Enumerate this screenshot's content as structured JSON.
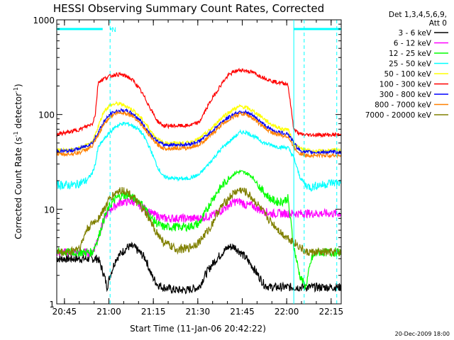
{
  "chart_data": {
    "type": "line",
    "title": "HESSI Observing Summary Count Rates, Corrected",
    "xlabel": "Start Time (11-Jan-06 20:42:22)",
    "ylabel_main": "Corrected Count Rate (s",
    "ylabel_sup1": "-1",
    "ylabel_mid": " detector",
    "ylabel_sup2": "-1",
    "ylabel_end": ")",
    "yscale": "log",
    "ylim": [
      1,
      1000
    ],
    "xlim_minutes": [
      0,
      96
    ],
    "x_ticks": [
      {
        "t": 2.6,
        "label": "20:45"
      },
      {
        "t": 17.6,
        "label": "21:00"
      },
      {
        "t": 32.6,
        "label": "21:15"
      },
      {
        "t": 47.6,
        "label": "21:30"
      },
      {
        "t": 62.6,
        "label": "21:45"
      },
      {
        "t": 77.6,
        "label": "22:00"
      },
      {
        "t": 92.6,
        "label": "22:15"
      }
    ],
    "y_ticks": [
      {
        "v": 1,
        "label": "1"
      },
      {
        "v": 10,
        "label": "10"
      },
      {
        "v": 100,
        "label": "100"
      },
      {
        "v": 1000,
        "label": "1000"
      }
    ],
    "legend_header": [
      "Det 1,3,4,5,6,9,",
      "Att 0"
    ],
    "series": [
      {
        "name": "3 - 6 keV",
        "color": "#000000",
        "x": [
          0,
          12,
          14,
          16,
          17,
          18,
          20,
          22,
          24,
          26,
          28,
          30,
          32,
          34,
          36,
          40,
          44,
          48,
          50,
          52,
          54,
          56,
          58,
          60,
          62,
          64,
          66,
          68,
          70,
          72,
          74,
          76,
          78
        ],
        "y": [
          3,
          3,
          3,
          2,
          1.5,
          2,
          3,
          3.5,
          4,
          4,
          3.5,
          3,
          2,
          1.6,
          1.5,
          1.4,
          1.4,
          1.5,
          2,
          2.5,
          3,
          3.5,
          4,
          4,
          3.5,
          3,
          2.5,
          2,
          1.6,
          1.5,
          1.5,
          1.5,
          1.5
        ]
      },
      {
        "name": "6 - 12 keV",
        "color": "#ff00ff",
        "x": [
          0,
          12,
          14,
          16,
          18,
          20,
          22,
          24,
          26,
          28,
          30,
          32,
          34,
          36,
          40,
          44,
          48,
          52,
          54,
          56,
          58,
          60,
          62,
          64,
          66,
          68,
          70,
          72,
          74,
          76,
          78,
          80,
          82
        ],
        "y": [
          3.5,
          3.5,
          5,
          8,
          10,
          11,
          12,
          12,
          12,
          11,
          10,
          9,
          8.5,
          8,
          8,
          8,
          8,
          8.5,
          9,
          10,
          11,
          12,
          12,
          11,
          11,
          10,
          9.5,
          9,
          9,
          9,
          9,
          9,
          9
        ]
      },
      {
        "name": "12 - 25 keV",
        "color": "#00ff00",
        "x": [
          0,
          12,
          14,
          16,
          18,
          20,
          22,
          24,
          26,
          28,
          30,
          32,
          34,
          36,
          40,
          44,
          48,
          50,
          52,
          54,
          56,
          58,
          60,
          62,
          64,
          66,
          68,
          70,
          72,
          74,
          76,
          78,
          80,
          82,
          84,
          86,
          88,
          90,
          92,
          94,
          96
        ],
        "y": [
          3.5,
          3.5,
          5,
          8,
          11,
          13,
          14,
          14,
          13,
          12,
          10,
          8,
          7,
          6.5,
          6.5,
          6.5,
          7,
          9,
          12,
          15,
          18,
          21,
          24,
          25,
          24,
          22,
          18,
          15,
          13,
          12,
          12,
          13,
          4,
          2,
          1.5,
          3,
          3.5,
          3.5,
          3.5,
          3.5,
          3.5
        ]
      },
      {
        "name": "25 - 50 keV",
        "color": "#00ffff",
        "x": [
          0,
          2,
          6,
          10,
          12,
          13,
          14,
          16,
          18,
          20,
          22,
          24,
          26,
          28,
          30,
          32,
          34,
          36,
          40,
          44,
          48,
          52,
          56,
          60,
          62,
          64,
          66,
          68,
          70,
          72,
          74,
          76,
          78,
          80,
          82,
          84,
          86,
          88,
          90,
          92,
          94,
          96
        ],
        "y": [
          18,
          18,
          18,
          20,
          24,
          30,
          45,
          55,
          65,
          75,
          80,
          80,
          75,
          68,
          55,
          40,
          28,
          22,
          21,
          21,
          23,
          32,
          45,
          58,
          65,
          65,
          60,
          55,
          50,
          48,
          46,
          45,
          45,
          35,
          22,
          18,
          17,
          18,
          18,
          19,
          19,
          19
        ]
      },
      {
        "name": "50 - 100 keV",
        "color": "#ffff00",
        "x": [
          0,
          4,
          8,
          12,
          14,
          16,
          18,
          20,
          22,
          24,
          26,
          28,
          30,
          32,
          34,
          36,
          40,
          44,
          48,
          52,
          56,
          60,
          62,
          64,
          66,
          68,
          70,
          72,
          74,
          76,
          78,
          80,
          82,
          84,
          86,
          88,
          90,
          92,
          94,
          96
        ],
        "y": [
          42,
          42,
          44,
          50,
          75,
          110,
          125,
          130,
          128,
          120,
          110,
          95,
          80,
          65,
          55,
          50,
          50,
          50,
          55,
          70,
          95,
          115,
          122,
          118,
          110,
          100,
          90,
          80,
          75,
          70,
          70,
          50,
          44,
          42,
          41,
          41,
          41,
          42,
          42,
          42
        ]
      },
      {
        "name": "100 - 300 keV",
        "color": "#ff0000",
        "x": [
          0,
          4,
          8,
          12,
          13,
          14,
          16,
          18,
          20,
          22,
          24,
          26,
          28,
          30,
          32,
          34,
          36,
          40,
          44,
          48,
          52,
          56,
          58,
          60,
          62,
          64,
          66,
          68,
          70,
          72,
          74,
          76,
          78,
          80,
          82,
          84,
          86,
          88,
          90,
          92,
          94,
          96
        ],
        "y": [
          62,
          65,
          70,
          80,
          100,
          220,
          240,
          255,
          265,
          262,
          250,
          225,
          185,
          145,
          110,
          85,
          76,
          76,
          76,
          82,
          140,
          220,
          260,
          285,
          295,
          290,
          280,
          260,
          245,
          230,
          220,
          215,
          210,
          70,
          62,
          61,
          61,
          61,
          61,
          61,
          61,
          61
        ]
      },
      {
        "name": "300 - 800 keV",
        "color": "#0000ff",
        "x": [
          0,
          4,
          8,
          12,
          14,
          16,
          18,
          20,
          22,
          24,
          26,
          28,
          30,
          32,
          34,
          36,
          40,
          44,
          48,
          52,
          56,
          60,
          62,
          64,
          66,
          68,
          70,
          72,
          74,
          76,
          78,
          80,
          82,
          84,
          86,
          88,
          90,
          92,
          94,
          96
        ],
        "y": [
          41,
          41,
          44,
          50,
          65,
          85,
          100,
          108,
          110,
          108,
          100,
          88,
          72,
          60,
          52,
          48,
          48,
          48,
          52,
          65,
          85,
          102,
          108,
          105,
          98,
          88,
          78,
          70,
          66,
          64,
          63,
          50,
          42,
          40,
          40,
          40,
          40,
          40,
          40,
          40
        ]
      },
      {
        "name": "800 - 7000 keV",
        "color": "#ff8000",
        "x": [
          0,
          4,
          8,
          12,
          14,
          16,
          18,
          20,
          22,
          24,
          26,
          28,
          30,
          32,
          34,
          36,
          40,
          44,
          48,
          52,
          56,
          60,
          62,
          64,
          66,
          68,
          70,
          72,
          74,
          76,
          78,
          80,
          82,
          84,
          86,
          88,
          90,
          92,
          94,
          96
        ],
        "y": [
          38,
          38,
          40,
          46,
          60,
          80,
          95,
          103,
          105,
          102,
          95,
          82,
          68,
          56,
          48,
          44,
          44,
          44,
          48,
          60,
          80,
          96,
          102,
          100,
          92,
          82,
          73,
          66,
          62,
          60,
          59,
          45,
          39,
          37,
          37,
          37,
          37,
          37,
          37,
          37
        ]
      },
      {
        "name": "7000 - 20000 keV",
        "color": "#808000",
        "x": [
          0,
          4,
          8,
          10,
          12,
          14,
          16,
          18,
          20,
          22,
          24,
          26,
          28,
          30,
          32,
          34,
          36,
          40,
          44,
          48,
          52,
          54,
          56,
          58,
          60,
          62,
          64,
          66,
          68,
          70,
          72,
          74,
          76,
          78,
          80,
          82,
          84,
          86,
          88,
          90,
          92,
          94,
          96
        ],
        "y": [
          3.5,
          3.5,
          4,
          6,
          7,
          8,
          10,
          13,
          15,
          16,
          15,
          13,
          11,
          9,
          7,
          5.5,
          4.5,
          3.8,
          3.8,
          4.5,
          6.5,
          9,
          11,
          13,
          15,
          16,
          15,
          13,
          11,
          9,
          7.5,
          6.5,
          5.5,
          5,
          4.5,
          4,
          3.5,
          3.5,
          3.5,
          3.5,
          3.5,
          3.5,
          3.5
        ]
      }
    ],
    "bars": [
      {
        "label": "",
        "x_start": 0,
        "x_end": 15.5,
        "y": 800
      },
      {
        "label": "N",
        "x_start": 18,
        "x_end": 18.5,
        "y": 800
      },
      {
        "label": "",
        "x_start": 80,
        "x_end": 96,
        "y": 800
      }
    ],
    "vlines": [
      {
        "t": 18,
        "style": "dashed"
      },
      {
        "t": 80,
        "style": "solid"
      },
      {
        "t": 83.5,
        "style": "dashed"
      },
      {
        "t": 94.5,
        "style": "dashed"
      }
    ],
    "vline_color": "#00ffff",
    "grid": false,
    "legend_position": "right-outside",
    "footer_date": "20-Dec-2009 18:00"
  }
}
